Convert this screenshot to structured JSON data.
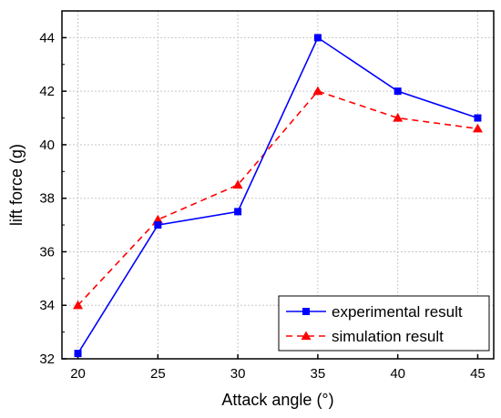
{
  "chart_data": {
    "type": "line",
    "title": "",
    "xlabel": "Attack angle (°)",
    "ylabel": "lift force (g)",
    "x": [
      20,
      25,
      30,
      35,
      40,
      45
    ],
    "xlim": [
      19,
      46
    ],
    "ylim": [
      32,
      45
    ],
    "xticks": [
      20,
      25,
      30,
      35,
      40,
      45
    ],
    "yticks": [
      32,
      34,
      36,
      38,
      40,
      42,
      44
    ],
    "grid": true,
    "legend_position": "bottom-right",
    "series": [
      {
        "name": "experimental result",
        "values": [
          32.2,
          37.0,
          37.5,
          44.0,
          42.0,
          41.0
        ],
        "color": "#0000ff",
        "marker": "square",
        "line_style": "solid"
      },
      {
        "name": "simulation result",
        "values": [
          34.0,
          37.2,
          38.5,
          42.0,
          41.0,
          40.6
        ],
        "color": "#ff0000",
        "marker": "triangle",
        "line_style": "dashed"
      }
    ]
  }
}
